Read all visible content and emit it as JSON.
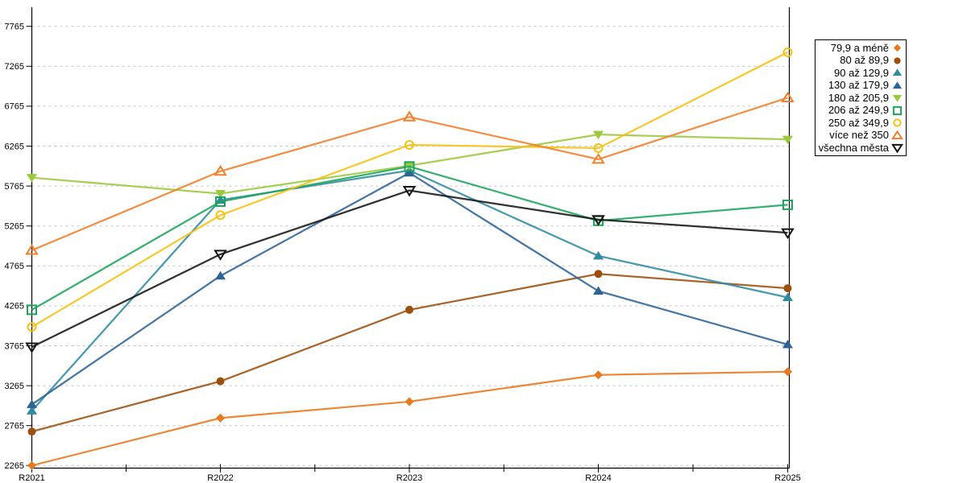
{
  "chart_data": {
    "type": "line",
    "title": "",
    "xlabel": "",
    "ylabel": "",
    "categories": [
      "R2021",
      "R2022",
      "R2023",
      "R2024",
      "R2025"
    ],
    "y_ticks": [
      2265,
      2765,
      3265,
      3765,
      4265,
      4765,
      5265,
      5765,
      6265,
      6765,
      7265,
      7765
    ],
    "ylim": [
      2228,
      7995
    ],
    "grid": "horizontal-dashed",
    "legend_position": "top-right",
    "series": [
      {
        "name": "79,9 a méně",
        "marker": "diamond",
        "fill": "filled",
        "color": "#E8791E",
        "values": [
          2265,
          2860,
          3065,
          3400,
          3440
        ]
      },
      {
        "name": "80 až 89,9",
        "marker": "circle",
        "fill": "filled",
        "color": "#9C500E",
        "values": [
          2690,
          3320,
          4215,
          4665,
          4485
        ]
      },
      {
        "name": "90 až 129,9",
        "marker": "triangle-up",
        "fill": "filled",
        "color": "#2E8BA0",
        "values": [
          2950,
          5590,
          5960,
          4890,
          4370
        ]
      },
      {
        "name": "130 až 179,9",
        "marker": "triangle-up",
        "fill": "filled",
        "color": "#2E6395",
        "values": [
          3030,
          4640,
          5930,
          4450,
          3780
        ]
      },
      {
        "name": "180 až 205,9",
        "marker": "triangle-down",
        "fill": "filled",
        "color": "#9CC83C",
        "values": [
          5870,
          5670,
          6020,
          6410,
          6350
        ]
      },
      {
        "name": "206 až 249,9",
        "marker": "square",
        "fill": "open",
        "color": "#1AA55A",
        "values": [
          4215,
          5570,
          6010,
          5330,
          5530
        ]
      },
      {
        "name": "250 až 349,9",
        "marker": "circle",
        "fill": "open",
        "color": "#F5C211",
        "values": [
          4000,
          5400,
          6280,
          6240,
          7440
        ]
      },
      {
        "name": "více než 350",
        "marker": "triangle-up",
        "fill": "open",
        "color": "#F0802B",
        "values": [
          4960,
          5950,
          6630,
          6100,
          6870
        ]
      },
      {
        "name": "všechna města",
        "marker": "triangle-down",
        "fill": "open",
        "color": "#141414",
        "values": [
          3750,
          4910,
          5710,
          5345,
          5180
        ]
      }
    ]
  },
  "colors": {
    "grid": "#c4c4c4",
    "axis": "#000000",
    "text": "#000000",
    "background": "#ffffff"
  }
}
